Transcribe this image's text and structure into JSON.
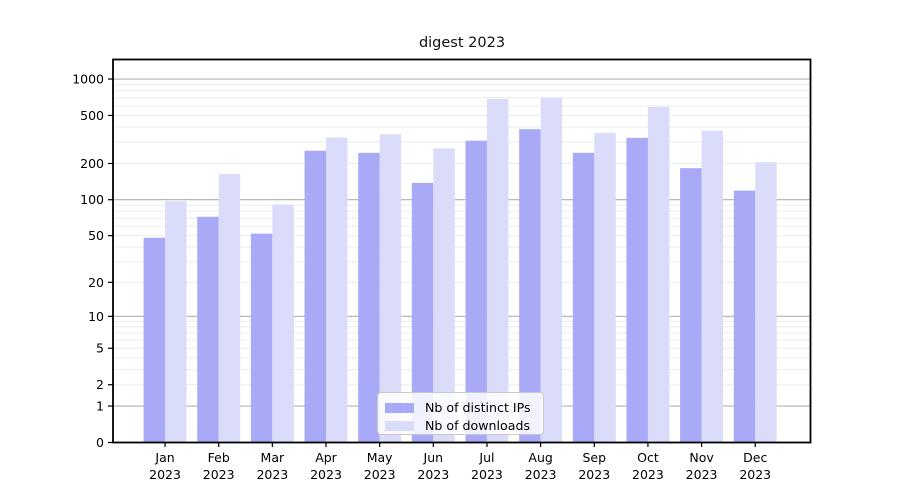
{
  "chart_data": {
    "type": "bar",
    "title": "digest 2023",
    "categories": [
      "Jan 2023",
      "Feb 2023",
      "Mar 2023",
      "Apr 2023",
      "May 2023",
      "Jun 2023",
      "Jul 2023",
      "Aug 2023",
      "Sep 2023",
      "Oct 2023",
      "Nov 2023",
      "Dec 2023"
    ],
    "series": [
      {
        "name": "Nb of distinct IPs",
        "color": "#a8aaf8",
        "values": [
          48,
          72,
          52,
          255,
          245,
          138,
          309,
          385,
          245,
          326,
          183,
          119
        ]
      },
      {
        "name": "Nb of downloads",
        "color": "#dadcf9",
        "values": [
          97,
          164,
          91,
          328,
          350,
          267,
          685,
          702,
          359,
          588,
          375,
          205
        ]
      }
    ],
    "xlabel": "",
    "ylabel": "",
    "y_scale": "log10(1+v)",
    "y_ticks": [
      0,
      1,
      2,
      5,
      10,
      20,
      50,
      100,
      200,
      500,
      1000
    ],
    "y_major_grid": [
      1,
      10,
      100,
      1000
    ],
    "ylim": [
      0,
      1450
    ],
    "bar_width_units": 0.4,
    "grid": true,
    "legend_position": "inside-bottom-center"
  },
  "colors": {
    "grid_major": "#b0b0b0",
    "grid_minor": "#ececec",
    "axis": "#000000",
    "tick_text": "#000000",
    "legend_border": "#c9c9c9"
  }
}
